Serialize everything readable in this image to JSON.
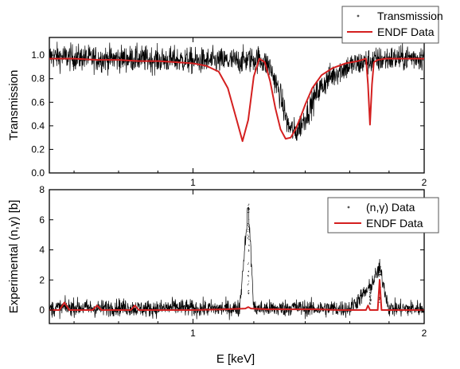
{
  "chart_data": [
    {
      "type": "line",
      "ylabel": "Transmission",
      "xlim": [
        0.65,
        2.0
      ],
      "ylim": [
        0.0,
        1.15
      ],
      "xscale": "log",
      "x_ticks": [
        1,
        2
      ],
      "y_ticks": [
        0.0,
        0.2,
        0.4,
        0.6,
        0.8,
        1.0
      ],
      "x_tick_labels": [
        "1",
        "2"
      ],
      "y_tick_labels": [
        "0.0",
        "0.2",
        "0.4",
        "0.6",
        "0.8",
        "1.0"
      ],
      "legend_position": "top-right",
      "series": [
        {
          "name": "Transmission",
          "style": "scatter",
          "color": "#000000",
          "x": [
            0.65,
            0.7,
            0.75,
            0.8,
            0.85,
            0.9,
            0.95,
            1.0,
            1.05,
            1.1,
            1.15,
            1.18,
            1.22,
            1.26,
            1.3,
            1.33,
            1.36,
            1.4,
            1.45,
            1.5,
            1.55,
            1.6,
            1.65,
            1.7,
            1.75,
            1.8,
            1.85,
            1.9,
            1.95,
            2.0
          ],
          "y": [
            0.99,
            0.98,
            0.97,
            0.97,
            0.97,
            0.96,
            0.96,
            0.95,
            0.95,
            0.95,
            0.95,
            0.96,
            0.97,
            0.9,
            0.65,
            0.4,
            0.34,
            0.47,
            0.68,
            0.8,
            0.87,
            0.91,
            0.93,
            0.95,
            0.96,
            0.97,
            0.97,
            0.98,
            0.98,
            0.98
          ]
        },
        {
          "name": "ENDF Data",
          "style": "line",
          "color": "#d42020",
          "x": [
            0.65,
            0.7,
            0.75,
            0.8,
            0.85,
            0.9,
            0.95,
            1.0,
            1.04,
            1.08,
            1.11,
            1.14,
            1.16,
            1.18,
            1.2,
            1.22,
            1.24,
            1.26,
            1.28,
            1.3,
            1.32,
            1.34,
            1.36,
            1.38,
            1.4,
            1.43,
            1.47,
            1.52,
            1.58,
            1.64,
            1.68,
            1.69,
            1.7,
            1.71,
            1.72,
            1.74,
            1.78,
            1.85,
            1.92,
            2.0
          ],
          "y": [
            0.97,
            0.97,
            0.96,
            0.96,
            0.95,
            0.95,
            0.94,
            0.93,
            0.91,
            0.86,
            0.72,
            0.45,
            0.27,
            0.45,
            0.82,
            0.97,
            0.94,
            0.78,
            0.55,
            0.37,
            0.29,
            0.3,
            0.37,
            0.47,
            0.58,
            0.72,
            0.83,
            0.89,
            0.93,
            0.95,
            0.97,
            0.75,
            0.41,
            0.75,
            0.94,
            0.96,
            0.97,
            0.97,
            0.97,
            0.97
          ]
        }
      ]
    },
    {
      "type": "line",
      "xlabel": "E [keV]",
      "ylabel": "Experimental (n,γ) [b]",
      "xlim": [
        0.65,
        2.0
      ],
      "ylim": [
        -0.9,
        8.0
      ],
      "xscale": "log",
      "x_ticks": [
        1,
        2
      ],
      "y_ticks": [
        0,
        2,
        4,
        6,
        8
      ],
      "x_tick_labels": [
        "1",
        "2"
      ],
      "y_tick_labels": [
        "0",
        "2",
        "4",
        "6",
        "8"
      ],
      "legend_position": "top-right",
      "series": [
        {
          "name": "(n,γ) Data",
          "style": "scatter",
          "color": "#000000",
          "x": [
            0.65,
            0.7,
            0.75,
            0.8,
            0.85,
            0.9,
            0.95,
            1.0,
            1.05,
            1.1,
            1.15,
            1.18,
            1.2,
            1.25,
            1.3,
            1.35,
            1.4,
            1.5,
            1.6,
            1.7,
            1.75,
            1.8,
            1.85,
            1.9,
            2.0
          ],
          "y": [
            0.1,
            0.2,
            0.1,
            0.2,
            0.1,
            0.1,
            0.2,
            0.1,
            0.1,
            0.1,
            0.1,
            7.0,
            0.1,
            0.1,
            0.1,
            0.2,
            0.1,
            0.1,
            0.1,
            1.5,
            2.8,
            0.1,
            0.1,
            0.1,
            0.1
          ]
        },
        {
          "name": "ENDF Data",
          "style": "line",
          "color": "#d42020",
          "x": [
            0.65,
            0.67,
            0.68,
            0.69,
            0.72,
            0.74,
            0.75,
            0.76,
            0.8,
            0.83,
            0.84,
            0.85,
            0.9,
            1.0,
            1.1,
            1.17,
            1.18,
            1.19,
            1.25,
            1.35,
            1.45,
            1.55,
            1.65,
            1.68,
            1.69,
            1.7,
            1.74,
            1.75,
            1.76,
            1.8,
            1.9,
            2.0
          ],
          "y": [
            0.0,
            0.0,
            0.5,
            0.0,
            0.0,
            0.0,
            0.3,
            0.0,
            0.0,
            0.0,
            0.3,
            0.0,
            0.0,
            0.0,
            0.05,
            0.1,
            0.2,
            0.1,
            0.05,
            0.05,
            0.05,
            0.0,
            0.0,
            0.0,
            0.3,
            0.0,
            0.0,
            2.0,
            0.0,
            0.0,
            0.0,
            0.0
          ]
        }
      ]
    }
  ]
}
